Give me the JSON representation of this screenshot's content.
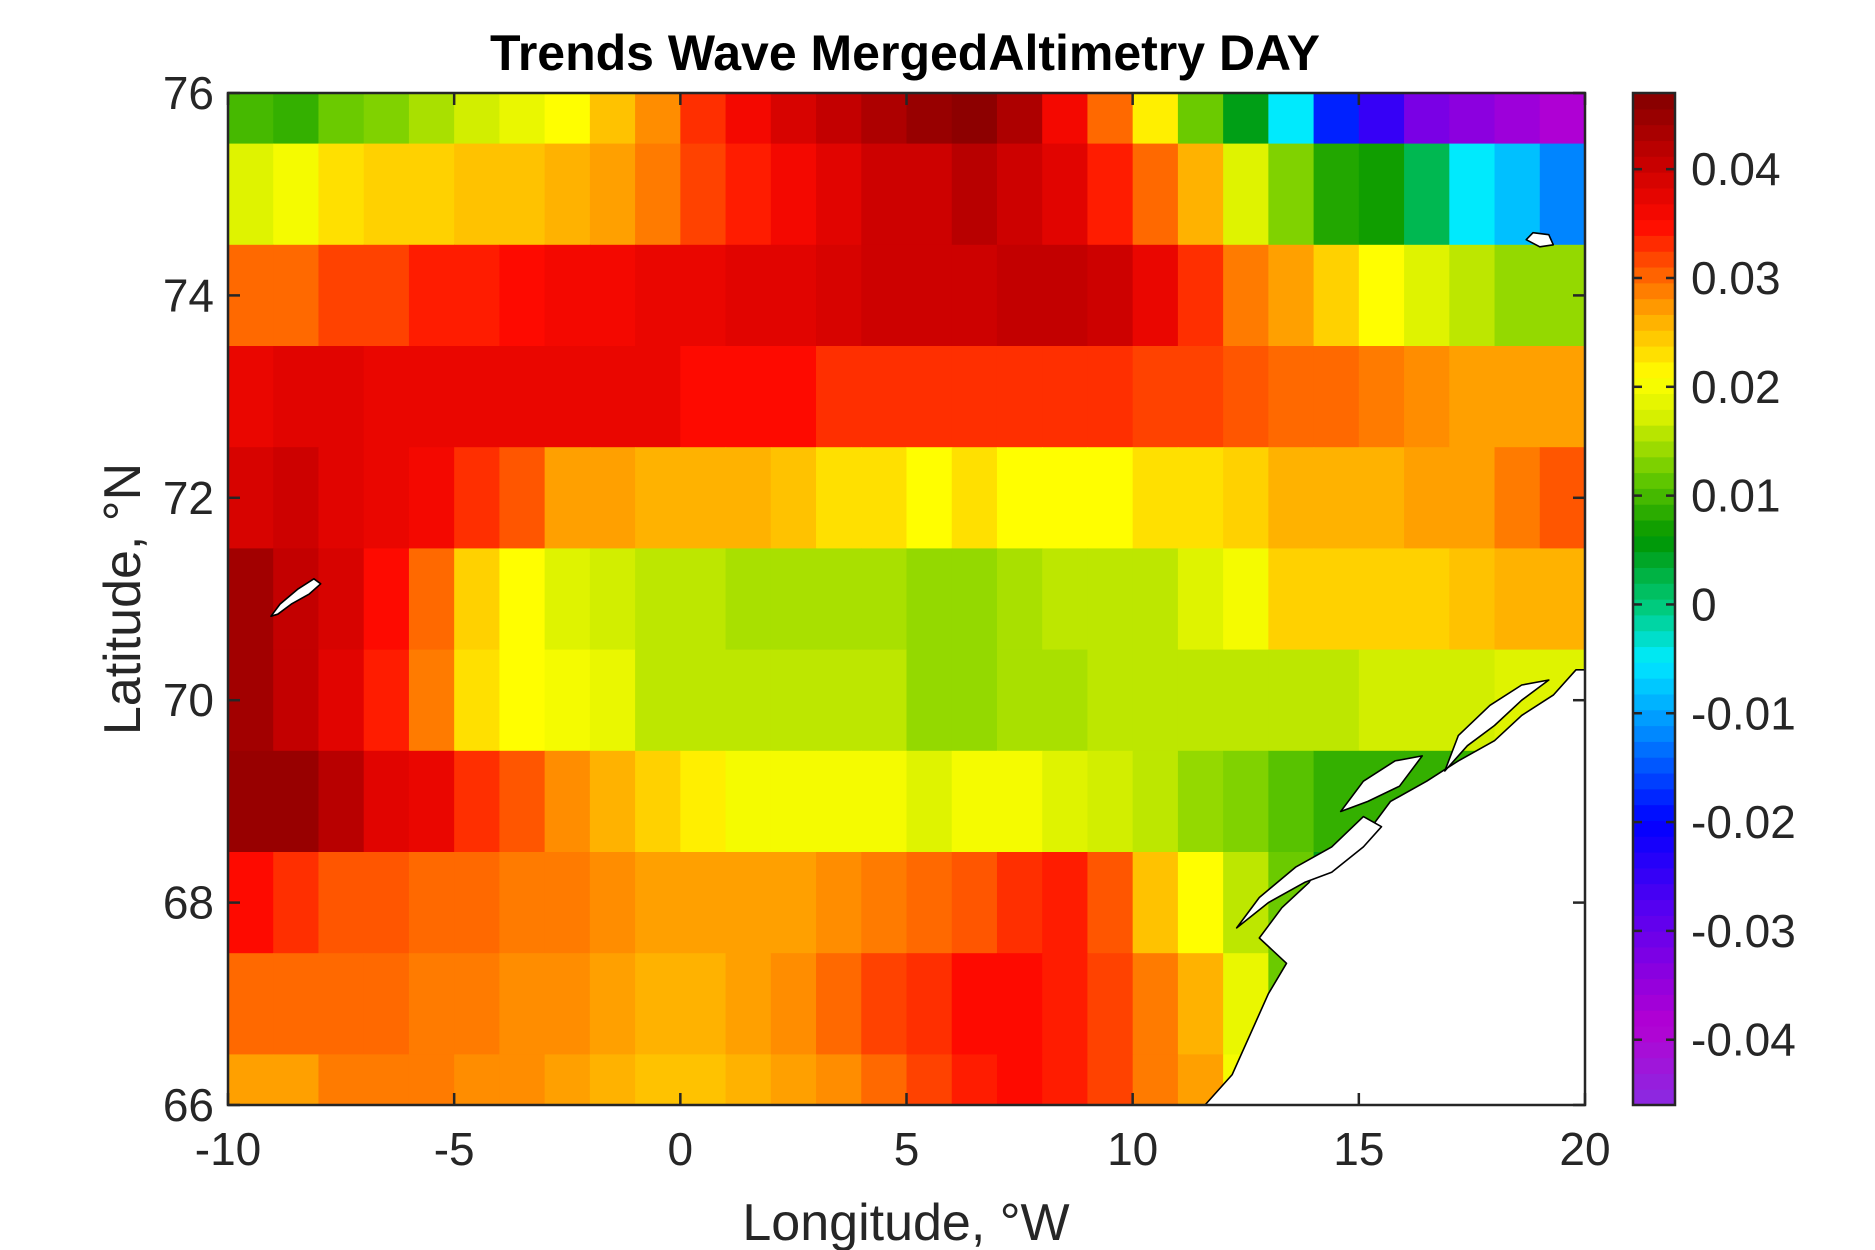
{
  "chart_data": {
    "type": "heatmap",
    "title": "Trends Wave MergedAltimetry DAY",
    "xlabel": "Longitude, °W",
    "ylabel": "Latitude, °N",
    "xlim": [
      -10,
      20
    ],
    "ylim": [
      66,
      76
    ],
    "xticks": [
      "-10",
      "-5",
      "0",
      "5",
      "10",
      "15",
      "20"
    ],
    "yticks": [
      "66",
      "68",
      "70",
      "72",
      "74",
      "76"
    ],
    "colorbar": {
      "limits": [
        -0.046,
        0.047
      ],
      "ticks": [
        "-0.04",
        "-0.03",
        "-0.02",
        "-0.01",
        "0",
        "0.01",
        "0.02",
        "0.03",
        "0.04"
      ],
      "tick_values": [
        -0.04,
        -0.03,
        -0.02,
        -0.01,
        0,
        0.01,
        0.02,
        0.03,
        0.04
      ],
      "colormap": "jet-like (violet-blue-cyan-green-yellow-red-darkred)"
    },
    "grid": false,
    "legend": "colorbar-right",
    "land_color": "#ffffff",
    "cell_lon_edges": [
      -10,
      -9,
      -8,
      -7,
      -6,
      -5,
      -4,
      -3,
      -2,
      -1,
      0,
      1,
      2,
      3,
      4,
      5,
      6,
      7,
      8,
      9,
      10,
      11,
      12,
      13,
      14,
      15,
      16,
      17,
      18,
      19,
      20
    ],
    "rows": [
      {
        "lat_range": [
          75.5,
          76.0
        ],
        "values": [
          0.01,
          0.009,
          0.012,
          0.013,
          0.015,
          0.017,
          0.019,
          0.021,
          0.025,
          0.028,
          0.033,
          0.036,
          0.039,
          0.041,
          0.043,
          0.045,
          0.046,
          0.043,
          0.036,
          0.03,
          0.022,
          0.012,
          0.005,
          -0.005,
          -0.018,
          -0.025,
          -0.032,
          -0.034,
          -0.036,
          -0.038
        ]
      },
      {
        "lat_range": [
          74.5,
          75.5
        ],
        "values": [
          0.018,
          0.02,
          0.023,
          0.024,
          0.024,
          0.025,
          0.025,
          0.026,
          0.027,
          0.029,
          0.032,
          0.034,
          0.036,
          0.038,
          0.04,
          0.04,
          0.042,
          0.04,
          0.038,
          0.034,
          0.03,
          0.026,
          0.018,
          0.013,
          0.008,
          0.007,
          0.002,
          -0.005,
          -0.008,
          -0.012
        ]
      },
      {
        "lat_range": [
          73.5,
          74.5
        ],
        "values": [
          0.03,
          0.03,
          0.032,
          0.032,
          0.034,
          0.034,
          0.035,
          0.036,
          0.036,
          0.037,
          0.037,
          0.038,
          0.038,
          0.039,
          0.04,
          0.04,
          0.04,
          0.041,
          0.041,
          0.04,
          0.037,
          0.033,
          0.029,
          0.027,
          0.024,
          0.021,
          0.018,
          0.016,
          0.014,
          0.014
        ]
      },
      {
        "lat_range": [
          72.5,
          73.5
        ],
        "values": [
          0.037,
          0.038,
          0.038,
          0.037,
          0.037,
          0.037,
          0.037,
          0.037,
          0.037,
          0.037,
          0.035,
          0.035,
          0.035,
          0.033,
          0.033,
          0.033,
          0.033,
          0.033,
          0.033,
          0.033,
          0.032,
          0.032,
          0.031,
          0.03,
          0.03,
          0.029,
          0.028,
          0.027,
          0.027,
          0.027
        ]
      },
      {
        "lat_range": [
          71.5,
          72.5
        ],
        "values": [
          0.039,
          0.04,
          0.038,
          0.037,
          0.036,
          0.033,
          0.031,
          0.027,
          0.027,
          0.026,
          0.026,
          0.026,
          0.025,
          0.023,
          0.023,
          0.021,
          0.023,
          0.021,
          0.021,
          0.021,
          0.023,
          0.023,
          0.024,
          0.026,
          0.026,
          0.026,
          0.027,
          0.027,
          0.029,
          0.031
        ]
      },
      {
        "lat_range": [
          70.5,
          71.5
        ],
        "values": [
          0.044,
          0.041,
          0.039,
          0.035,
          0.03,
          0.024,
          0.021,
          0.018,
          0.017,
          0.016,
          0.016,
          0.015,
          0.015,
          0.015,
          0.015,
          0.014,
          0.014,
          0.015,
          0.016,
          0.016,
          0.016,
          0.018,
          0.02,
          0.024,
          0.024,
          0.024,
          0.024,
          0.025,
          0.026,
          0.026
        ]
      },
      {
        "lat_range": [
          69.5,
          70.5
        ],
        "values": [
          0.044,
          0.041,
          0.038,
          0.034,
          0.029,
          0.023,
          0.021,
          0.02,
          0.019,
          0.016,
          0.016,
          0.016,
          0.016,
          0.016,
          0.016,
          0.014,
          0.014,
          0.015,
          0.015,
          0.016,
          0.016,
          0.016,
          0.016,
          0.016,
          0.016,
          0.017,
          0.017,
          0.017,
          0.018,
          0.018
        ]
      },
      {
        "lat_range": [
          68.5,
          69.5
        ],
        "values": [
          0.045,
          0.045,
          0.042,
          0.038,
          0.037,
          0.033,
          0.031,
          0.028,
          0.026,
          0.024,
          0.022,
          0.02,
          0.02,
          0.02,
          0.02,
          0.018,
          0.02,
          0.02,
          0.018,
          0.017,
          0.016,
          0.014,
          0.013,
          0.011,
          0.009,
          0.009,
          0.009,
          0.009,
          0.009,
          0.009
        ]
      },
      {
        "lat_range": [
          67.5,
          68.5
        ],
        "values": [
          0.035,
          0.033,
          0.031,
          0.031,
          0.03,
          0.03,
          0.029,
          0.029,
          0.028,
          0.027,
          0.027,
          0.027,
          0.027,
          0.028,
          0.029,
          0.03,
          0.031,
          0.033,
          0.034,
          0.031,
          0.025,
          0.021,
          0.016,
          0.012,
          0.005,
          0.005,
          0.005,
          0.002,
          0.002,
          0.002
        ]
      },
      {
        "lat_range": [
          66.5,
          67.5
        ],
        "values": [
          0.03,
          0.03,
          0.03,
          0.03,
          0.029,
          0.029,
          0.028,
          0.028,
          0.027,
          0.026,
          0.026,
          0.027,
          0.028,
          0.03,
          0.032,
          0.033,
          0.035,
          0.035,
          0.034,
          0.032,
          0.029,
          0.026,
          0.019,
          0.012,
          0.009,
          0.009,
          0.009,
          0.009,
          0.009,
          0.009
        ]
      },
      {
        "lat_range": [
          66.0,
          66.5
        ],
        "values": [
          0.027,
          0.027,
          0.029,
          0.029,
          0.029,
          0.028,
          0.028,
          0.027,
          0.026,
          0.025,
          0.025,
          0.026,
          0.027,
          0.028,
          0.03,
          0.032,
          0.034,
          0.035,
          0.034,
          0.032,
          0.029,
          0.027,
          0.02,
          0.015,
          0.015,
          0.015,
          0.015,
          0.015,
          0.015,
          0.015
        ]
      }
    ],
    "land_polygons": [
      {
        "name": "jan-mayen",
        "points": [
          [
            -8.9,
            70.85
          ],
          [
            -8.6,
            70.95
          ],
          [
            -8.2,
            71.05
          ],
          [
            -7.95,
            71.15
          ],
          [
            -8.1,
            71.2
          ],
          [
            -8.45,
            71.1
          ],
          [
            -8.85,
            70.95
          ],
          [
            -9.05,
            70.83
          ]
        ]
      },
      {
        "name": "bear-island",
        "points": [
          [
            18.7,
            74.55
          ],
          [
            19.0,
            74.48
          ],
          [
            19.3,
            74.5
          ],
          [
            19.2,
            74.6
          ],
          [
            18.85,
            74.62
          ]
        ]
      },
      {
        "name": "norway-coast",
        "points": [
          [
            11.6,
            66.0
          ],
          [
            12.2,
            66.3
          ],
          [
            12.6,
            66.7
          ],
          [
            13.0,
            67.1
          ],
          [
            13.4,
            67.4
          ],
          [
            12.8,
            67.65
          ],
          [
            13.3,
            67.95
          ],
          [
            13.9,
            68.2
          ],
          [
            14.3,
            68.5
          ],
          [
            15.2,
            68.7
          ],
          [
            15.7,
            69.0
          ],
          [
            16.5,
            69.2
          ],
          [
            17.2,
            69.4
          ],
          [
            18.0,
            69.6
          ],
          [
            18.6,
            69.85
          ],
          [
            19.3,
            70.05
          ],
          [
            19.8,
            70.3
          ],
          [
            20.0,
            70.3
          ],
          [
            20.0,
            66.0
          ]
        ]
      },
      {
        "name": "lofoten",
        "points": [
          [
            12.3,
            67.75
          ],
          [
            13.0,
            68.0
          ],
          [
            13.8,
            68.2
          ],
          [
            14.4,
            68.3
          ],
          [
            15.1,
            68.55
          ],
          [
            15.5,
            68.75
          ],
          [
            15.1,
            68.85
          ],
          [
            14.4,
            68.55
          ],
          [
            13.6,
            68.35
          ],
          [
            12.8,
            68.05
          ]
        ]
      },
      {
        "name": "vesteralen",
        "points": [
          [
            14.6,
            68.9
          ],
          [
            15.2,
            69.0
          ],
          [
            15.9,
            69.15
          ],
          [
            16.4,
            69.45
          ],
          [
            15.8,
            69.4
          ],
          [
            15.1,
            69.2
          ]
        ]
      },
      {
        "name": "senja-troms",
        "points": [
          [
            16.9,
            69.3
          ],
          [
            17.4,
            69.55
          ],
          [
            18.0,
            69.75
          ],
          [
            18.6,
            70.0
          ],
          [
            19.2,
            70.2
          ],
          [
            18.6,
            70.15
          ],
          [
            17.9,
            69.95
          ],
          [
            17.2,
            69.65
          ]
        ]
      }
    ]
  }
}
